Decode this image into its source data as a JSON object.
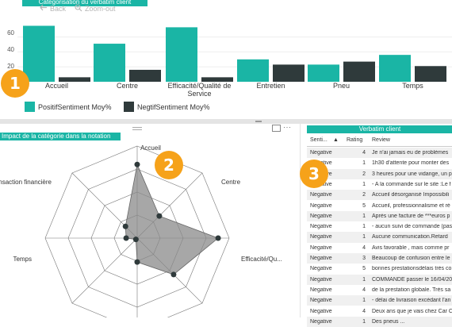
{
  "top_panel": {
    "title": "Catégorisation du verbatim client",
    "nav": {
      "back_label": "Back",
      "zoom_out_label": "Zoom-out"
    },
    "badge": "1",
    "legend": [
      {
        "label": "PositifSentiment Moy%",
        "color": "#1ab5a5"
      },
      {
        "label": "NegtifSentiment Moy%",
        "color": "#2f3a3b"
      }
    ],
    "y_ticks": [
      "60",
      "40",
      "20"
    ]
  },
  "chart_data": [
    {
      "type": "bar",
      "categories": [
        "Accueil",
        "Centre",
        "Efficacité/Qualité de Service",
        "Entretien",
        "Pneu",
        "Temps"
      ],
      "category_lines": [
        [
          "Accueil"
        ],
        [
          "Centre"
        ],
        [
          "Efficacité/Qualité de",
          "Service"
        ],
        [
          "Entretien"
        ],
        [
          "Pneu"
        ],
        [
          "Temps"
        ]
      ],
      "series": [
        {
          "name": "PositifSentiment Moy%",
          "color": "#1ab5a5",
          "values": [
            75,
            51,
            73,
            30,
            23,
            36
          ]
        },
        {
          "name": "NegtifSentiment Moy%",
          "color": "#2f3a3b",
          "values": [
            6,
            16,
            6,
            23,
            27,
            21
          ]
        }
      ],
      "ylim": [
        0,
        80
      ]
    },
    {
      "type": "radar",
      "title": "Impact de la catégorie dans la notation",
      "axes": [
        "Accueil",
        "Centre",
        "Efficacité/Qu...",
        "",
        "",
        "",
        "Temps",
        "Transaction financière"
      ],
      "values": [
        0.8,
        0.34,
        0.88,
        0.56,
        0.26,
        0.02,
        0.12,
        0.18
      ],
      "rmax": 1
    }
  ],
  "radar_panel": {
    "badge": "2"
  },
  "table_panel": {
    "title": "Verbatim client",
    "badge": "3",
    "columns": [
      "Senti...",
      "Rating",
      "Review"
    ],
    "rows": [
      {
        "sentiment": "Negative",
        "rating": "4",
        "review": "Je n'ai jamais eu de problèmes"
      },
      {
        "sentiment": "Negative",
        "rating": "1",
        "review": "1h30 d'attente pour monter des"
      },
      {
        "sentiment": "Negative",
        "rating": "2",
        "review": "3 heures pour une vidange, un p"
      },
      {
        "sentiment": "Negative",
        "rating": "1",
        "review": "- A la commande sur le site :Le f"
      },
      {
        "sentiment": "Negative",
        "rating": "2",
        "review": "Accueil désorganisé Impossibili"
      },
      {
        "sentiment": "Negative",
        "rating": "5",
        "review": "Accueil, professionnalisme et ré"
      },
      {
        "sentiment": "Negative",
        "rating": "1",
        "review": "Après une facture de ***euros p"
      },
      {
        "sentiment": "Negative",
        "rating": "1",
        "review": "- aucun suivi de commande (pas"
      },
      {
        "sentiment": "Negative",
        "rating": "1",
        "review": "Aucune communication.Retard"
      },
      {
        "sentiment": "Negative",
        "rating": "4",
        "review": "Avis favorable , mais comme pr"
      },
      {
        "sentiment": "Negative",
        "rating": "3",
        "review": "Beaucoup de confusion entre le"
      },
      {
        "sentiment": "Negative",
        "rating": "5",
        "review": "bonnes prestationsdélais très co"
      },
      {
        "sentiment": "Negative",
        "rating": "1",
        "review": "COMMANDE passer le 16/04/20"
      },
      {
        "sentiment": "Negative",
        "rating": "4",
        "review": "de la prestation globale. Très sa"
      },
      {
        "sentiment": "Negative",
        "rating": "1",
        "review": "- délai de livraison excédant l'an"
      },
      {
        "sentiment": "Negative",
        "rating": "4",
        "review": "Deux ans que je vais chez Car C"
      },
      {
        "sentiment": "Negative",
        "rating": "1",
        "review": "Des pneus ..."
      }
    ]
  }
}
